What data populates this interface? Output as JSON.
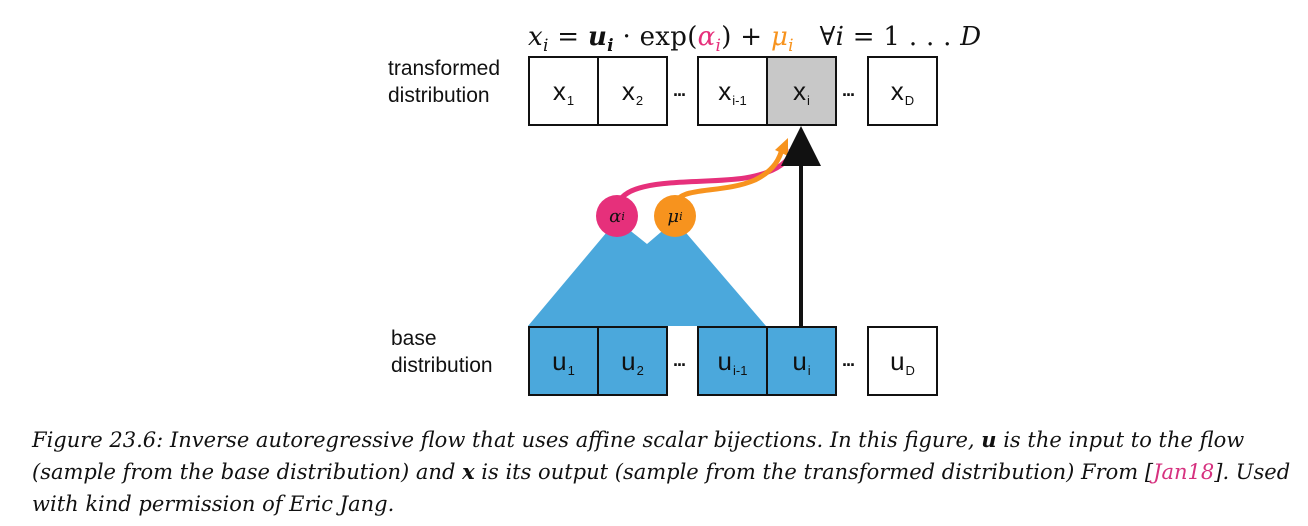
{
  "formula": {
    "lhs": "x",
    "lhs_sub": "i",
    "eq": " = ",
    "u": "u",
    "u_sub": "i",
    "dot_exp": " · exp(",
    "alpha": "α",
    "alpha_sub": "i",
    "close_plus": ") + ",
    "mu": "μ",
    "mu_sub": "i",
    "forall": "∀",
    "forall_i": "i",
    "range": " = 1 . . . ",
    "D": "D"
  },
  "labels": {
    "transformed_1": "transformed",
    "transformed_2": "distribution",
    "base_1": "base",
    "base_2": "distribution"
  },
  "top_cells": [
    {
      "main": "x",
      "sub": "1"
    },
    {
      "main": "x",
      "sub": "2"
    },
    {
      "main": "x",
      "sub": "i-1"
    },
    {
      "main": "x",
      "sub": "i"
    },
    {
      "main": "x",
      "sub": "D"
    }
  ],
  "bottom_cells": [
    {
      "main": "u",
      "sub": "1"
    },
    {
      "main": "u",
      "sub": "2"
    },
    {
      "main": "u",
      "sub": "i-1"
    },
    {
      "main": "u",
      "sub": "i"
    },
    {
      "main": "u",
      "sub": "D"
    }
  ],
  "ellipsis": "...",
  "nodes": {
    "alpha": {
      "symbol": "α",
      "sub": "i"
    },
    "mu": {
      "symbol": "μ",
      "sub": "i"
    }
  },
  "colors": {
    "blue": "#4ba8dc",
    "gray": "#c8c8c8",
    "pink": "#e6307b",
    "orange": "#f7931e",
    "citation": "#d6317f"
  },
  "caption": {
    "part1": "Figure 23.6: Inverse autoregressive flow that uses affine scalar bijections. In this figure, ",
    "u_bold": "u",
    "part2": " is the input to the flow (sample from the base distribution) and ",
    "x_bold": "x",
    "part3": " is its output (sample from the transformed distribution) From [",
    "cite": "Jan18",
    "part4": "]. Used with kind permission of Eric Jang."
  }
}
